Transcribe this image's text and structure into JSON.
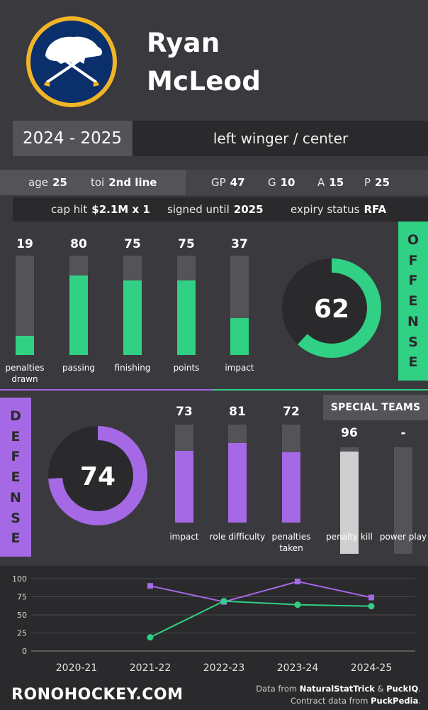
{
  "player": {
    "first_name": "Ryan",
    "last_name": "McLeod",
    "season": "2024 - 2025",
    "position": "left winger / center"
  },
  "info": {
    "age_label": "age",
    "age": "25",
    "toi_label": "toi",
    "toi": "2nd line",
    "gp_label": "GP",
    "gp": "47",
    "g_label": "G",
    "g": "10",
    "a_label": "A",
    "a": "15",
    "p_label": "P",
    "p": "25",
    "cap_label": "cap hit",
    "cap": "$2.1M x 1",
    "signed_label": "signed until",
    "signed": "2025",
    "expiry_label": "expiry status",
    "expiry": "RFA"
  },
  "colors": {
    "offense": "#30d184",
    "defense": "#a569e6",
    "special": "#cfcfcf",
    "track": "#545357"
  },
  "offense": {
    "tag": [
      "O",
      "F",
      "F",
      "E",
      "N",
      "S",
      "E"
    ],
    "overall": 62,
    "bars": [
      {
        "label": "penalties drawn",
        "value": 19
      },
      {
        "label": "passing",
        "value": 80
      },
      {
        "label": "finishing",
        "value": 75
      },
      {
        "label": "points",
        "value": 75
      },
      {
        "label": "impact",
        "value": 37
      }
    ]
  },
  "defense": {
    "tag": [
      "D",
      "E",
      "F",
      "E",
      "N",
      "S",
      "E"
    ],
    "overall": 74,
    "bars": [
      {
        "label": "impact",
        "value": 73
      },
      {
        "label": "role difficulty",
        "value": 81
      },
      {
        "label": "penalties taken",
        "value": 72
      }
    ]
  },
  "special_teams": {
    "title": "SPECIAL TEAMS",
    "bars": [
      {
        "label": "penalty kill",
        "value": 96,
        "display": "96"
      },
      {
        "label": "power play",
        "value": null,
        "display": "-"
      }
    ]
  },
  "chart_data": {
    "type": "line",
    "categories": [
      "2020-21",
      "2021-22",
      "2022-23",
      "2023-24",
      "2024-25"
    ],
    "ylim": [
      0,
      100
    ],
    "yticks": [
      0,
      25,
      50,
      75,
      100
    ],
    "grid": true,
    "series": [
      {
        "color": "#a569e6",
        "marker": "square",
        "values": [
          null,
          90,
          68,
          96,
          74
        ]
      },
      {
        "color": "#30d184",
        "marker": "circle",
        "values": [
          null,
          19,
          69,
          64,
          62
        ]
      }
    ]
  },
  "footer": {
    "brand": "RONOHOCKEY.COM",
    "credit1_pre": "Data from ",
    "credit1_a": "NaturalStatTrick",
    "credit1_mid": " & ",
    "credit1_b": "PuckIQ",
    "credit1_post": ".",
    "credit2_pre": "Contract data from ",
    "credit2_a": "PuckPedia",
    "credit2_post": "."
  }
}
